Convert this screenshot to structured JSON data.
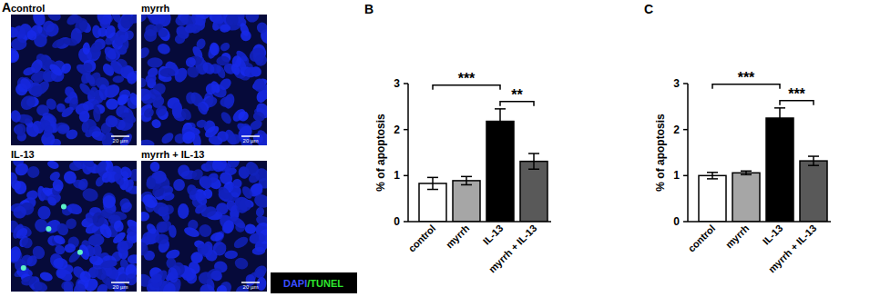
{
  "panel_a": {
    "label": "A",
    "images": [
      {
        "label": "control"
      },
      {
        "label": "myrrh"
      },
      {
        "label": "IL-13"
      },
      {
        "label": "myrrh + IL-13"
      }
    ],
    "scale_bar": "20 µm",
    "stain_legend": [
      {
        "text": "DAPI",
        "color": "#3a4dff"
      },
      {
        "text": "/TUNEL",
        "color": "#2ee82e"
      }
    ]
  },
  "chart_data": [
    {
      "type": "bar",
      "title": "B",
      "y_label": "% of apoptosis",
      "categories": [
        "control",
        "myrrh",
        "IL-13",
        "myrrh + IL-13"
      ],
      "values": [
        0.83,
        0.89,
        2.18,
        1.31
      ],
      "errors": [
        0.13,
        0.09,
        0.27,
        0.17
      ],
      "colors": [
        "#ffffff",
        "#a6a6a6",
        "#000000",
        "#595959"
      ],
      "ylim": [
        0,
        3
      ],
      "yticks": [
        0,
        1,
        2,
        3
      ],
      "annotations": [
        {
          "label": "***",
          "categories": [
            "control",
            "IL-13"
          ]
        },
        {
          "label": "**",
          "categories": [
            "IL-13",
            "myrrh + IL-13"
          ]
        }
      ]
    },
    {
      "type": "bar",
      "title": "C",
      "y_label": "% of apoptosis",
      "categories": [
        "control",
        "myrrh",
        "IL-13",
        "myrrh + IL-13"
      ],
      "values": [
        1.0,
        1.06,
        2.25,
        1.32
      ],
      "errors": [
        0.07,
        0.04,
        0.22,
        0.1
      ],
      "colors": [
        "#ffffff",
        "#a6a6a6",
        "#000000",
        "#595959"
      ],
      "ylim": [
        0,
        3
      ],
      "yticks": [
        0,
        1,
        2,
        3
      ],
      "annotations": [
        {
          "label": "***",
          "categories": [
            "control",
            "IL-13"
          ]
        },
        {
          "label": "***",
          "categories": [
            "IL-13",
            "myrrh + IL-13"
          ]
        }
      ]
    }
  ]
}
